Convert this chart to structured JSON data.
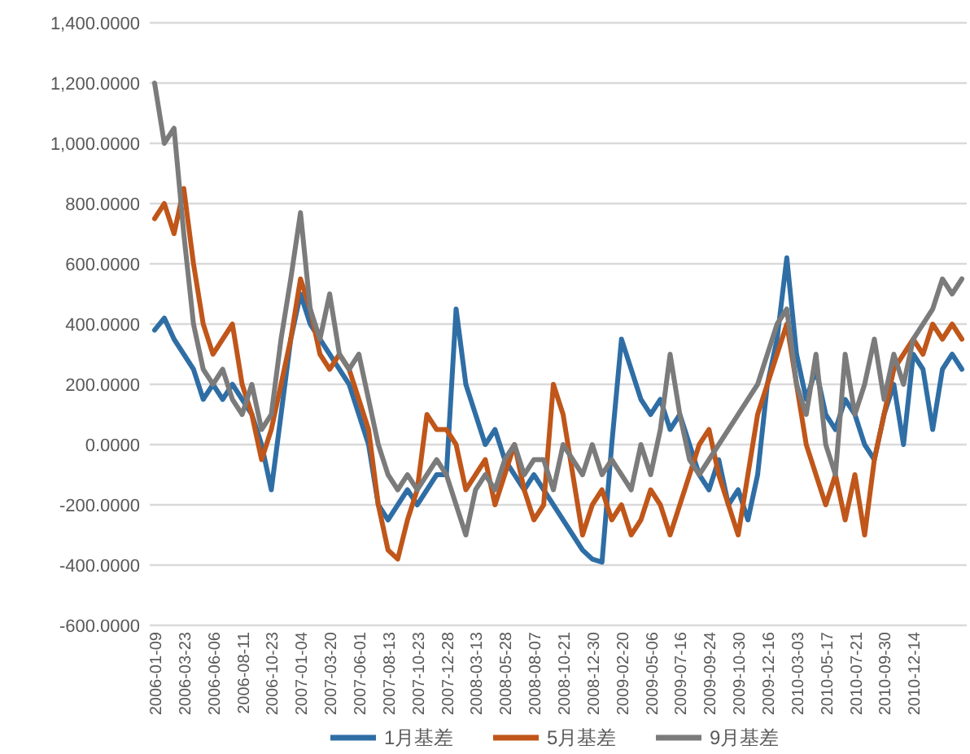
{
  "chart_data": {
    "type": "line",
    "categories": [
      "2006-01-09",
      null,
      null,
      "2006-03-23",
      null,
      null,
      "2006-06-06",
      null,
      null,
      "2006-08-11",
      null,
      null,
      "2006-10-23",
      null,
      null,
      "2007-01-04",
      null,
      null,
      "2007-03-20",
      null,
      null,
      "2007-06-01",
      null,
      null,
      "2007-08-13",
      null,
      null,
      "2007-10-23",
      null,
      null,
      "2007-12-28",
      null,
      null,
      "2008-03-13",
      null,
      null,
      "2008-05-28",
      null,
      null,
      "2008-08-07",
      null,
      null,
      "2008-10-21",
      null,
      null,
      "2008-12-30",
      null,
      null,
      "2009-02-20",
      null,
      null,
      "2009-05-06",
      null,
      null,
      "2009-07-16",
      null,
      null,
      "2009-09-24",
      null,
      null,
      "2009-10-30",
      null,
      null,
      "2009-12-16",
      null,
      null,
      "2010-03-03",
      null,
      null,
      "2010-05-17",
      null,
      null,
      "2010-07-21",
      null,
      null,
      "2010-09-30",
      null,
      null,
      "2010-12-14",
      null,
      null,
      null,
      null,
      null
    ],
    "series": [
      {
        "name": "1月基差",
        "color": "#2f6ea5",
        "values": [
          380,
          420,
          350,
          300,
          250,
          150,
          200,
          150,
          200,
          150,
          100,
          0,
          -150,
          100,
          350,
          500,
          400,
          350,
          300,
          250,
          200,
          100,
          0,
          -200,
          -250,
          -200,
          -150,
          -200,
          -150,
          -100,
          -100,
          450,
          200,
          100,
          0,
          50,
          -50,
          -100,
          -150,
          -100,
          -150,
          -200,
          -250,
          -300,
          -350,
          -380,
          -390,
          0,
          350,
          250,
          150,
          100,
          150,
          50,
          100,
          0,
          -100,
          -150,
          -50,
          -200,
          -150,
          -250,
          -100,
          200,
          350,
          620,
          300,
          150,
          250,
          100,
          50,
          150,
          100,
          0,
          -50,
          100,
          200,
          0,
          300,
          250,
          50,
          250,
          300,
          250
        ]
      },
      {
        "name": "5月基差",
        "color": "#c0561a",
        "values": [
          750,
          800,
          700,
          850,
          600,
          400,
          300,
          350,
          400,
          200,
          100,
          -50,
          50,
          200,
          350,
          550,
          450,
          300,
          250,
          300,
          250,
          150,
          50,
          -200,
          -350,
          -380,
          -250,
          -150,
          100,
          50,
          50,
          0,
          -150,
          -100,
          -50,
          -200,
          -100,
          0,
          -150,
          -250,
          -200,
          200,
          100,
          -100,
          -300,
          -200,
          -150,
          -250,
          -200,
          -300,
          -250,
          -150,
          -200,
          -300,
          -200,
          -100,
          0,
          50,
          -100,
          -200,
          -300,
          -100,
          100,
          200,
          300,
          400,
          200,
          0,
          -100,
          -200,
          -100,
          -250,
          -100,
          -300,
          -50,
          100,
          250,
          300,
          350,
          300,
          400,
          350,
          400,
          350
        ]
      },
      {
        "name": "9月基差",
        "color": "#7b7b7b",
        "values": [
          1200,
          1000,
          1050,
          700,
          400,
          250,
          200,
          250,
          150,
          100,
          200,
          50,
          100,
          350,
          550,
          770,
          450,
          350,
          500,
          300,
          250,
          300,
          150,
          0,
          -100,
          -150,
          -100,
          -150,
          -100,
          -50,
          -100,
          -200,
          -300,
          -150,
          -100,
          -150,
          -50,
          0,
          -100,
          -50,
          -50,
          -150,
          0,
          -50,
          -100,
          0,
          -100,
          -50,
          -100,
          -150,
          0,
          -100,
          50,
          300,
          100,
          -50,
          -100,
          -50,
          0,
          50,
          100,
          150,
          200,
          300,
          400,
          450,
          200,
          100,
          300,
          0,
          -100,
          300,
          100,
          200,
          350,
          150,
          300,
          200,
          350,
          400,
          450,
          550,
          500,
          550
        ]
      }
    ],
    "ylim": [
      -600,
      1400
    ],
    "yticks": [
      {
        "value": -600,
        "label": "-600.0000"
      },
      {
        "value": -400,
        "label": "-400.0000"
      },
      {
        "value": -200,
        "label": "-200.0000"
      },
      {
        "value": 0,
        "label": "0.0000"
      },
      {
        "value": 200,
        "label": "200.0000"
      },
      {
        "value": 400,
        "label": "400.0000"
      },
      {
        "value": 600,
        "label": "600.0000"
      },
      {
        "value": 800,
        "label": "800.0000"
      },
      {
        "value": 1000,
        "label": "1,000.0000"
      },
      {
        "value": 1200,
        "label": "1,200.0000"
      },
      {
        "value": 1400,
        "label": "1,400.0000"
      }
    ],
    "grid": "y",
    "legend": "bottom",
    "marker": "none",
    "line_style": "solid"
  }
}
